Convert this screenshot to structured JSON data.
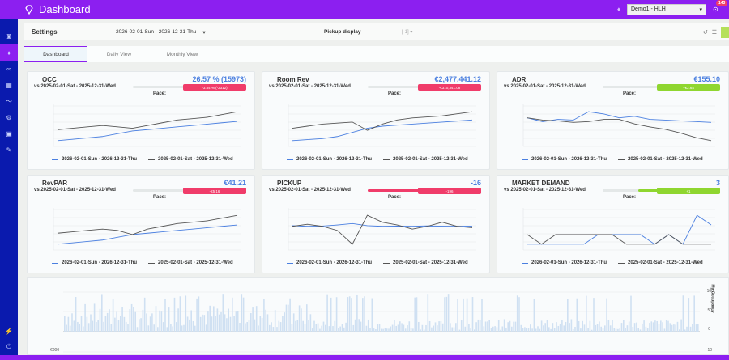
{
  "header": {
    "title": "Dashboard",
    "hotel_select": "Demo1 - HLH",
    "notification_count": "143"
  },
  "sidebar": {
    "items": [
      {
        "icon": "binoculars-icon"
      },
      {
        "icon": "diamond-icon",
        "active": true
      },
      {
        "icon": "glasses-icon"
      },
      {
        "icon": "table-icon"
      },
      {
        "icon": "trend-icon"
      },
      {
        "icon": "gear-icon"
      },
      {
        "icon": "image-icon"
      },
      {
        "icon": "wrench-icon"
      }
    ],
    "bottom": [
      {
        "icon": "plug-icon"
      },
      {
        "icon": "power-icon"
      }
    ]
  },
  "settings": {
    "title": "Settings",
    "date_range": "2026-02-01-Sun - 2026-12-31-Thu",
    "pickup_display_label": "Pickup display",
    "pickup_display_value": "[-1]"
  },
  "tabs": [
    {
      "label": "Dashboard",
      "active": true
    },
    {
      "label": "Daily View"
    },
    {
      "label": "Monthly View"
    }
  ],
  "legend": {
    "current": "2026-02-01-Sun - 2026-12-31-Thu",
    "previous": "2025-02-01-Sat - 2025-12-31-Wed"
  },
  "pace_label": "Pace:",
  "vs_label": "vs 2025-02-01-Sat - 2025-12-31-Wed",
  "cards": [
    {
      "title": "OCC",
      "value": "26.57 % (15973)",
      "delta": "-3.84 % (-2312)",
      "delta_color": "#f03c6a",
      "pace_pct": 10,
      "pace_color": "#f03c6a"
    },
    {
      "title": "Room Rev",
      "value": "€2,477,441.12",
      "delta": "-€310,341.08",
      "delta_color": "#f03c6a",
      "pace_pct": 10,
      "pace_color": "#f03c6a"
    },
    {
      "title": "ADR",
      "value": "€155.10",
      "delta": "+€2.64",
      "delta_color": "#8fd630",
      "pace_pct": 2,
      "pace_color": "#8fd630"
    },
    {
      "title": "RevPAR",
      "value": "€41.21",
      "delta": "-€5.16",
      "delta_color": "#f03c6a",
      "pace_pct": 10,
      "pace_color": "#f03c6a"
    },
    {
      "title": "PICKUP",
      "value": "-16",
      "delta": "-196",
      "delta_color": "#f03c6a",
      "pace_pct": 100,
      "pace_color": "#f03c6a"
    },
    {
      "title": "MARKET DEMAND",
      "value": "3",
      "delta": "+1",
      "delta_color": "#8fd630",
      "pace_pct": 45,
      "pace_color": "#8fd630"
    }
  ],
  "bottom_chart": {
    "right_axis_label": "My Occupancy",
    "right_ticks": [
      "100",
      "50",
      "0"
    ],
    "lower_left_tick": "€800",
    "lower_right_tick": "10"
  },
  "chart_data": [
    {
      "type": "line",
      "title": "OCC",
      "series": [
        {
          "name": "2026-02-01-Sun - 2026-12-31-Thu",
          "values": [
            20,
            21,
            22,
            23,
            25,
            27,
            28,
            29,
            30,
            31,
            32,
            33,
            34
          ]
        },
        {
          "name": "2025-02-01-Sat - 2025-12-31-Wed",
          "values": [
            28,
            29,
            30,
            31,
            30,
            29,
            31,
            33,
            35,
            36,
            37,
            39,
            41
          ]
        }
      ]
    },
    {
      "type": "line",
      "title": "Room Rev",
      "series": [
        {
          "name": "2026-02-01-Sun - 2026-12-31-Thu",
          "values": [
            1.6,
            1.65,
            1.7,
            1.8,
            2.0,
            2.2,
            2.3,
            2.35,
            2.4,
            2.45,
            2.5,
            2.55,
            2.6
          ]
        },
        {
          "name": "2025-02-01-Sat - 2025-12-31-Wed",
          "values": [
            2.2,
            2.3,
            2.4,
            2.45,
            2.5,
            2.1,
            2.4,
            2.6,
            2.7,
            2.75,
            2.8,
            2.9,
            3.0
          ]
        }
      ]
    },
    {
      "type": "line",
      "title": "ADR",
      "series": [
        {
          "name": "2026-02-01-Sun - 2026-12-31-Thu",
          "values": [
            160,
            155,
            158,
            157,
            168,
            165,
            160,
            162,
            158,
            157,
            156,
            155,
            154
          ]
        },
        {
          "name": "2025-02-01-Sat - 2025-12-31-Wed",
          "values": [
            160,
            157,
            156,
            154,
            155,
            158,
            158,
            152,
            148,
            145,
            140,
            134,
            130
          ]
        }
      ]
    },
    {
      "type": "line",
      "title": "RevPAR",
      "series": [
        {
          "name": "2026-02-01-Sun - 2026-12-31-Thu",
          "values": [
            25,
            26,
            27,
            28,
            30,
            32,
            33,
            34,
            35,
            36,
            37,
            38,
            39
          ]
        },
        {
          "name": "2025-02-01-Sat - 2025-12-31-Wed",
          "values": [
            33,
            34,
            35,
            36,
            35,
            32,
            36,
            38,
            40,
            41,
            42,
            44,
            46
          ]
        }
      ]
    },
    {
      "type": "line",
      "title": "PICKUP",
      "series": [
        {
          "name": "2026-02-01-Sun - 2026-12-31-Thu",
          "values": [
            150,
            100,
            120,
            200,
            300,
            150,
            100,
            120,
            100,
            130,
            110,
            100,
            120
          ]
        },
        {
          "name": "2025-02-01-Sat - 2025-12-31-Wed",
          "values": [
            100,
            250,
            100,
            -200,
            -1200,
            900,
            400,
            200,
            -100,
            100,
            400,
            100,
            0
          ]
        }
      ]
    },
    {
      "type": "line",
      "title": "MARKET DEMAND",
      "series": [
        {
          "name": "2026-02-01-Sun - 2026-12-31-Thu",
          "values": [
            1,
            1,
            1,
            1,
            1,
            2,
            2,
            2,
            2,
            1,
            2,
            1,
            4,
            3
          ]
        },
        {
          "name": "2025-02-01-Sat - 2025-12-31-Wed",
          "values": [
            2,
            1,
            2,
            2,
            2,
            2,
            2,
            1,
            1,
            1,
            2,
            1,
            1,
            1
          ]
        }
      ]
    }
  ]
}
